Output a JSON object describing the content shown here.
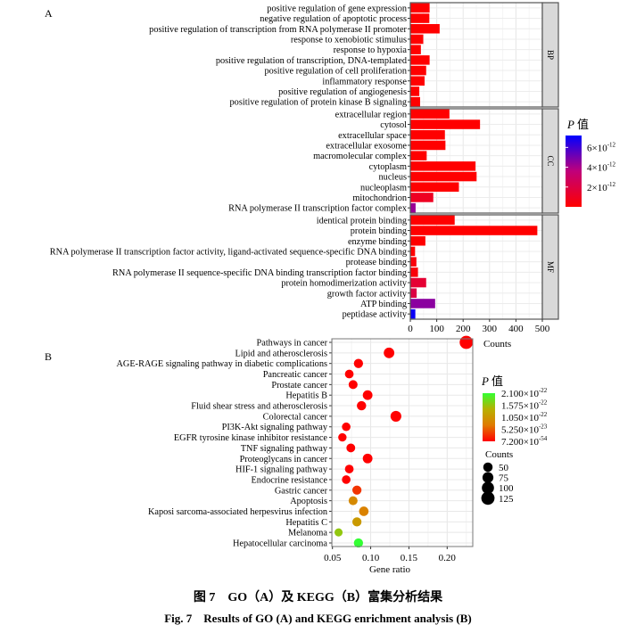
{
  "chart_data": [
    {
      "panel_label": "A",
      "type": "bar",
      "orientation": "horizontal",
      "xlabel": "Counts",
      "xlim": [
        0,
        500
      ],
      "xticks": [
        "0",
        "100",
        "200",
        "300",
        "400",
        "500"
      ],
      "grid": true,
      "legend": {
        "title_italic": "P",
        "title_suffix": "值",
        "ticks": [
          "6×10⁻¹²",
          "4×10⁻¹²",
          "2×10⁻¹²"
        ],
        "tick_values": [
          6e-12,
          4e-12,
          2e-12
        ],
        "range": [
          0,
          7.2e-12
        ],
        "low_color": "#ff0000",
        "high_color": "#0000ff",
        "placement": "right"
      },
      "facets": [
        {
          "name": "BP",
          "categories": [
            "positive regulation of gene expression",
            "negative regulation of apoptotic process",
            "positive regulation of transcription from RNA polymerase II promoter",
            "response to xenobiotic stimulus",
            "response to hypoxia",
            "positive regulation of transcription, DNA-templated",
            "positive regulation of cell proliferation",
            "inflammatory response",
            "positive regulation of angiogenesis",
            "positive regulation of protein kinase B signaling"
          ],
          "values": [
            73,
            72,
            111,
            49,
            40,
            73,
            60,
            54,
            34,
            37
          ],
          "p_values": [
            0,
            0,
            0,
            0,
            0,
            0,
            0,
            0,
            0,
            0
          ]
        },
        {
          "name": "CC",
          "categories": [
            "extracellular region",
            "cytosol",
            "extracellular space",
            "extracellular exosome",
            "macromolecular complex",
            "cytoplasm",
            "nucleus",
            "nucleoplasm",
            "mitochondrion",
            "RNA polymerase II transcription factor complex"
          ],
          "values": [
            148,
            264,
            131,
            133,
            62,
            247,
            251,
            184,
            87,
            20
          ],
          "p_values": [
            0,
            0,
            0,
            0,
            0,
            0,
            0,
            0,
            1e-12,
            4.3e-12
          ]
        },
        {
          "name": "MF",
          "categories": [
            "identical protein binding",
            "protein binding",
            "enzyme binding",
            "RNA polymerase II transcription factor activity, ligand-activated sequence-specific DNA binding",
            "protease binding",
            "RNA polymerase II sequence-specific DNA binding transcription factor binding",
            "protein homodimerization activity",
            "growth factor activity",
            "ATP binding",
            "peptidase activity"
          ],
          "values": [
            168,
            481,
            57,
            18,
            23,
            29,
            60,
            24,
            94,
            19
          ],
          "p_values": [
            0,
            0,
            0,
            0,
            3e-13,
            3e-13,
            1.5e-12,
            2e-12,
            4.6e-12,
            7e-12
          ]
        }
      ]
    },
    {
      "panel_label": "B",
      "type": "scatter",
      "xlabel": "Gene ratio",
      "xlim": [
        0.05,
        0.235
      ],
      "xticks": [
        "0.05",
        "0.10",
        "0.15",
        "0.20"
      ],
      "grid": true,
      "categories": [
        "Pathways in cancer",
        "Lipid and atherosclerosis",
        "AGE-RAGE signaling pathway in diabetic complications",
        "Pancreatic cancer",
        "Prostate cancer",
        "Hepatitis B",
        "Fluid shear stress and atherosclerosis",
        "Colorectal cancer",
        "PI3K-Akt signaling pathway",
        "EGFR tyrosine kinase inhibitor resistance",
        "TNF signaling pathway",
        "Proteoglycans in cancer",
        "HIF-1 signaling pathway",
        "Endocrine resistance",
        "Gastric cancer",
        "Apoptosis",
        "Kaposi sarcoma-associated herpesvirus infection",
        "Hepatitis C",
        "Melanoma",
        "Hepatocellular carcinoma"
      ],
      "gene_ratio": [
        0.225,
        0.124,
        0.084,
        0.072,
        0.077,
        0.096,
        0.088,
        0.133,
        0.068,
        0.063,
        0.074,
        0.096,
        0.072,
        0.068,
        0.082,
        0.077,
        0.091,
        0.082,
        0.058,
        0.084
      ],
      "counts": [
        126,
        69,
        47,
        40,
        43,
        54,
        49,
        74,
        38,
        35,
        41,
        54,
        40,
        38,
        46,
        43,
        51,
        46,
        32,
        47
      ],
      "p_values": [
        0,
        0,
        0,
        0,
        0,
        0,
        0,
        0,
        0,
        0,
        0,
        0,
        0,
        0,
        3e-23,
        9e-23,
        8e-23,
        1.1e-22,
        1.6e-22,
        2.1e-22
      ],
      "color_legend": {
        "title_italic": "P",
        "title_suffix": "值",
        "ticks": [
          "2.100×10⁻²²",
          "1.575×10⁻²²",
          "1.050×10⁻²²",
          "5.250×10⁻²³",
          "7.200×10⁻⁵⁴"
        ],
        "range": [
          7.2e-54,
          2.1e-22
        ],
        "low_color": "#ff0000",
        "high_color": "#33ff33"
      },
      "size_legend": {
        "title": "Counts",
        "values": [
          50,
          75,
          100,
          125
        ],
        "labels": [
          "50",
          "75",
          "100",
          "125"
        ]
      }
    }
  ],
  "caption": {
    "zh": "图 7　GO（A）及 KEGG（B）富集分析结果",
    "en": "Fig. 7　Results of GO (A) and KEGG enrichment analysis (B)"
  }
}
